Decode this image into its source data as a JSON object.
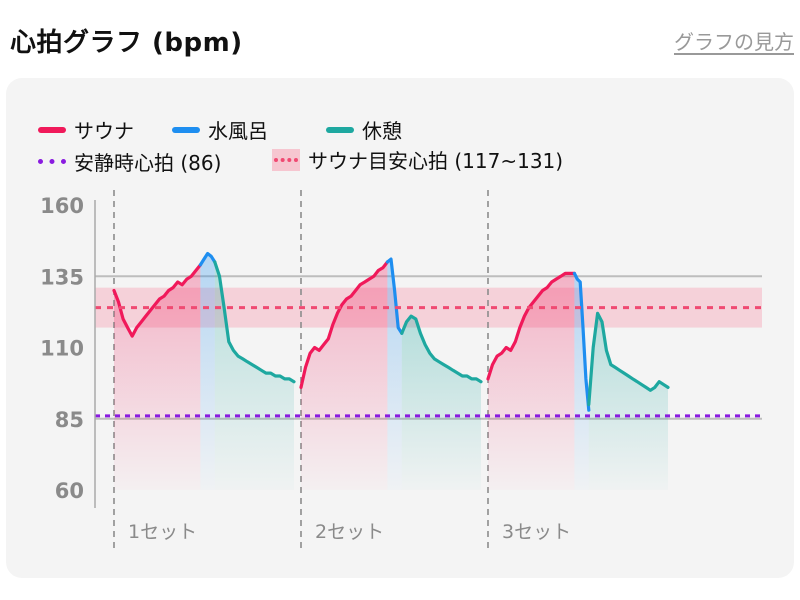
{
  "header": {
    "title": "心拍グラフ (bpm)",
    "help_link": "グラフの見方"
  },
  "legend": {
    "sauna": "サウナ",
    "cold_bath": "水風呂",
    "rest": "休憩",
    "resting_hr": "安静時心拍 (86)",
    "sauna_zone": "サウナ目安心拍 (117~131)"
  },
  "colors": {
    "sauna": "#f0195a",
    "cold_bath": "#1e8ef0",
    "rest": "#1ea8a0",
    "resting_line": "#8a1be0",
    "zone_band": "#f6c6d0",
    "zone_line": "#f04a72"
  },
  "chart_data": {
    "type": "line",
    "x_categories": [
      "1セット",
      "2セット",
      "3セット"
    ],
    "y_ticks": [
      60,
      85,
      110,
      135,
      160
    ],
    "ylim": [
      60,
      160
    ],
    "grid": "horizontal lines at 85 and 135",
    "reference_lines": [
      {
        "name": "安静時心拍",
        "value": 86
      },
      {
        "name": "サウナ目安心拍",
        "range": [
          117,
          131
        ],
        "center": 124
      }
    ],
    "sets": [
      {
        "label": "1セット",
        "segments": [
          {
            "phase": "sauna",
            "values": [
              130,
              126,
              120,
              117,
              114,
              117,
              119,
              121,
              123,
              125,
              127,
              128,
              130,
              131,
              133,
              132,
              134,
              135,
              137,
              139
            ]
          },
          {
            "phase": "cold_bath",
            "values": [
              139,
              141,
              143,
              142,
              140
            ]
          },
          {
            "phase": "rest",
            "values": [
              140,
              135,
              124,
              112,
              109,
              107,
              106,
              105,
              104,
              103,
              102,
              101,
              101,
              100,
              100,
              99,
              99,
              98
            ]
          }
        ]
      },
      {
        "label": "2セット",
        "segments": [
          {
            "phase": "sauna",
            "values": [
              96,
              103,
              108,
              110,
              109,
              111,
              113,
              118,
              122,
              125,
              127,
              128,
              130,
              132,
              133,
              134,
              135,
              137,
              138,
              140
            ]
          },
          {
            "phase": "cold_bath",
            "values": [
              140,
              141,
              130,
              117,
              115
            ]
          },
          {
            "phase": "rest",
            "values": [
              115,
              119,
              121,
              120,
              115,
              111,
              108,
              106,
              105,
              104,
              103,
              102,
              101,
              100,
              100,
              99,
              99,
              98
            ]
          }
        ]
      },
      {
        "label": "3セット",
        "segments": [
          {
            "phase": "sauna",
            "values": [
              99,
              104,
              107,
              108,
              110,
              109,
              112,
              117,
              121,
              124,
              126,
              128,
              130,
              131,
              133,
              134,
              135,
              136,
              136,
              136
            ]
          },
          {
            "phase": "cold_bath",
            "values": [
              136,
              134,
              133,
              117,
              99,
              88
            ]
          },
          {
            "phase": "rest",
            "values": [
              90,
              110,
              122,
              119,
              109,
              104,
              103,
              102,
              101,
              100,
              99,
              98,
              97,
              96,
              95,
              96,
              98,
              97,
              96
            ]
          }
        ]
      }
    ]
  }
}
